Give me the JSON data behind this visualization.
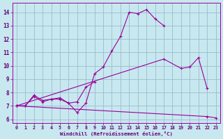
{
  "bg_color": "#c8e8f0",
  "line_color": "#990099",
  "grid_color": "#99bbcc",
  "xlabel": "Windchill (Refroidissement éolien,°C)",
  "xlabel_color": "#660077",
  "tick_color": "#660077",
  "ylim": [
    5.7,
    14.7
  ],
  "xlim": [
    -0.5,
    23.5
  ],
  "yticks": [
    6,
    7,
    8,
    9,
    10,
    11,
    12,
    13,
    14
  ],
  "xticks": [
    0,
    1,
    2,
    3,
    4,
    5,
    6,
    7,
    8,
    9,
    10,
    11,
    12,
    13,
    14,
    15,
    16,
    17,
    18,
    19,
    20,
    21,
    22,
    23
  ],
  "curve1_x": [
    0,
    1,
    2,
    3,
    4,
    5,
    6,
    7,
    8,
    9,
    10,
    11,
    12,
    13,
    14,
    15,
    16,
    17
  ],
  "curve1_y": [
    7.0,
    7.0,
    7.7,
    7.3,
    7.5,
    7.5,
    7.2,
    6.5,
    7.2,
    9.4,
    9.9,
    11.1,
    12.2,
    14.0,
    13.9,
    14.2,
    13.5,
    13.0
  ],
  "curve2_x": [
    0,
    1,
    2,
    3,
    4,
    5,
    6,
    7,
    8,
    9
  ],
  "curve2_y": [
    7.0,
    7.0,
    7.8,
    7.4,
    7.5,
    7.6,
    7.2,
    7.3,
    8.4,
    8.8
  ],
  "curve3_x": [
    0,
    17,
    19,
    20,
    21,
    22
  ],
  "curve3_y": [
    7.0,
    10.5,
    9.8,
    9.9,
    10.6,
    8.3
  ],
  "curve4_x": [
    0,
    22,
    23
  ],
  "curve4_y": [
    7.0,
    6.2,
    6.1
  ]
}
